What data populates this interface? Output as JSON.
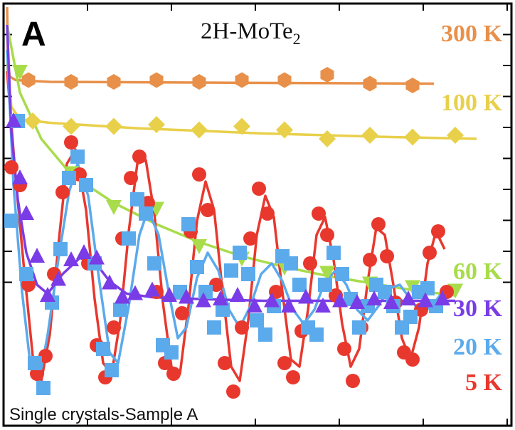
{
  "panel_label": "A",
  "chart_data": {
    "type": "scatter",
    "title": "2H-MoTe2",
    "title_main": "2H-MoTe",
    "title_sub": "2",
    "annotation": "Single crystals-Sample A",
    "xlabel": "",
    "ylabel": "",
    "xlim": [
      0,
      10
    ],
    "ylim": [
      0,
      10
    ],
    "grid": false,
    "legend": "right-side labels",
    "series": [
      {
        "name": "300 K",
        "color": "#E8904A",
        "marker": "hexagon",
        "x": [
          0.5,
          1.5,
          2.5,
          3.5,
          4.5,
          5.5,
          6.5,
          7.5,
          8.5,
          9.5
        ],
        "y": [
          8.95,
          8.9,
          8.9,
          8.95,
          8.9,
          8.95,
          8.95,
          9.1,
          8.85,
          8.8
        ],
        "fit": [
          [
            0.0,
            11.0
          ],
          [
            0.02,
            9.5
          ],
          [
            0.06,
            9.05
          ],
          [
            0.2,
            8.95
          ],
          [
            1.0,
            8.9
          ],
          [
            10.0,
            8.85
          ]
        ]
      },
      {
        "name": "100 K",
        "color": "#E8D04A",
        "marker": "diamond",
        "x": [
          0.6,
          1.5,
          2.5,
          3.5,
          4.5,
          5.5,
          6.5,
          7.5,
          8.5,
          9.5,
          10.5
        ],
        "y": [
          7.8,
          7.65,
          7.65,
          7.7,
          7.55,
          7.65,
          7.55,
          7.3,
          7.4,
          7.35,
          7.4
        ],
        "fit": [
          [
            0.0,
            9.4
          ],
          [
            0.1,
            8.2
          ],
          [
            0.3,
            7.85
          ],
          [
            1.0,
            7.75
          ],
          [
            3.0,
            7.6
          ],
          [
            6.0,
            7.45
          ],
          [
            9.0,
            7.35
          ],
          [
            11.0,
            7.3
          ]
        ]
      },
      {
        "name": "60 K",
        "color": "#A8DC4A",
        "marker": "triangle-down",
        "x": [
          0.3,
          1.5,
          2.5,
          3.5,
          4.5,
          5.5,
          6.5,
          7.5,
          8.5,
          9.5,
          10.5
        ],
        "y": [
          9.2,
          6.35,
          5.4,
          5.35,
          4.3,
          3.95,
          3.7,
          3.55,
          3.25,
          3.15,
          3.05
        ],
        "fit": [
          [
            0.0,
            10.5
          ],
          [
            0.3,
            8.6
          ],
          [
            0.8,
            7.3
          ],
          [
            1.5,
            6.3
          ],
          [
            2.5,
            5.5
          ],
          [
            3.5,
            4.9
          ],
          [
            4.5,
            4.4
          ],
          [
            5.5,
            4.0
          ],
          [
            6.5,
            3.7
          ],
          [
            7.5,
            3.45
          ],
          [
            8.5,
            3.25
          ],
          [
            9.5,
            3.05
          ],
          [
            10.5,
            2.9
          ]
        ]
      },
      {
        "name": "30 K",
        "color": "#7A3CE6",
        "marker": "triangle-up",
        "x": [
          0.15,
          0.3,
          0.45,
          0.7,
          0.95,
          1.2,
          1.5,
          1.8,
          2.1,
          2.4,
          2.7,
          3.0,
          3.4,
          3.8,
          4.2,
          4.6,
          5.0,
          5.4,
          5.8,
          6.2,
          6.6,
          7.0,
          7.4,
          7.8,
          8.2,
          8.6,
          9.0,
          9.4,
          9.8,
          10.2
        ],
        "y": [
          7.8,
          6.2,
          5.2,
          4.0,
          2.9,
          3.35,
          3.9,
          4.1,
          3.95,
          3.25,
          2.85,
          2.95,
          3.05,
          2.9,
          2.85,
          2.75,
          2.8,
          2.9,
          2.6,
          2.75,
          2.6,
          2.85,
          2.6,
          2.75,
          2.7,
          2.8,
          2.7,
          2.8,
          2.75,
          2.8
        ],
        "fit": [
          [
            0.0,
            10.5
          ],
          [
            0.1,
            7.5
          ],
          [
            0.25,
            5.6
          ],
          [
            0.45,
            4.1
          ],
          [
            0.7,
            3.2
          ],
          [
            0.95,
            2.95
          ],
          [
            1.3,
            3.5
          ],
          [
            1.7,
            3.95
          ],
          [
            2.05,
            3.85
          ],
          [
            2.4,
            3.3
          ],
          [
            2.8,
            2.95
          ],
          [
            3.4,
            2.85
          ],
          [
            4.5,
            2.8
          ],
          [
            6.0,
            2.75
          ],
          [
            8.0,
            2.75
          ],
          [
            10.5,
            2.75
          ]
        ]
      },
      {
        "name": "20 K",
        "color": "#5BAAEC",
        "marker": "square",
        "x": [
          0.1,
          0.25,
          0.45,
          0.65,
          0.85,
          1.05,
          1.25,
          1.45,
          1.65,
          1.85,
          2.05,
          2.25,
          2.45,
          2.65,
          2.85,
          3.05,
          3.25,
          3.45,
          3.65,
          3.85,
          4.05,
          4.25,
          4.45,
          4.65,
          4.85,
          5.05,
          5.25,
          5.45,
          5.65,
          5.85,
          6.05,
          6.25,
          6.45,
          6.65,
          6.85,
          7.05,
          7.25,
          7.45,
          7.65,
          7.85,
          8.05,
          8.25,
          8.45,
          8.65,
          8.85,
          9.05,
          9.25,
          9.45,
          9.65,
          9.85,
          10.05
        ],
        "y": [
          5.0,
          7.8,
          3.5,
          1.0,
          0.3,
          2.7,
          4.2,
          6.2,
          6.8,
          6.0,
          3.8,
          1.4,
          0.8,
          2.5,
          4.5,
          5.6,
          5.2,
          3.8,
          1.5,
          1.3,
          3.0,
          4.9,
          3.7,
          3.0,
          2.0,
          2.5,
          3.6,
          4.1,
          3.5,
          2.2,
          1.8,
          2.6,
          4.0,
          3.8,
          3.2,
          2.0,
          1.8,
          3.2,
          4.1,
          3.5,
          2.8,
          2.0,
          2.6,
          3.2,
          3.0,
          2.6,
          2.0,
          2.3,
          3.0,
          3.1,
          2.6
        ],
        "fit": [
          [
            0.0,
            9.8
          ],
          [
            0.15,
            6.0
          ],
          [
            0.35,
            3.0
          ],
          [
            0.55,
            0.9
          ],
          [
            0.75,
            0.5
          ],
          [
            0.95,
            1.8
          ],
          [
            1.2,
            3.9
          ],
          [
            1.45,
            5.8
          ],
          [
            1.65,
            6.6
          ],
          [
            1.9,
            5.7
          ],
          [
            2.15,
            3.4
          ],
          [
            2.4,
            1.3
          ],
          [
            2.6,
            1.0
          ],
          [
            2.85,
            2.6
          ],
          [
            3.1,
            4.6
          ],
          [
            3.3,
            5.3
          ],
          [
            3.55,
            4.6
          ],
          [
            3.8,
            2.9
          ],
          [
            4.0,
            1.7
          ],
          [
            4.2,
            2.0
          ],
          [
            4.45,
            3.4
          ],
          [
            4.7,
            4.1
          ],
          [
            4.95,
            3.6
          ],
          [
            5.2,
            2.5
          ],
          [
            5.45,
            2.0
          ],
          [
            5.7,
            2.6
          ],
          [
            5.95,
            3.5
          ],
          [
            6.2,
            3.8
          ],
          [
            6.45,
            3.3
          ],
          [
            6.7,
            2.5
          ],
          [
            6.95,
            2.1
          ],
          [
            7.2,
            2.5
          ],
          [
            7.45,
            3.3
          ],
          [
            7.7,
            3.6
          ],
          [
            7.95,
            3.2
          ],
          [
            8.2,
            2.5
          ],
          [
            8.45,
            2.2
          ],
          [
            8.7,
            2.6
          ],
          [
            8.95,
            3.1
          ],
          [
            9.2,
            3.2
          ],
          [
            9.45,
            2.8
          ],
          [
            9.7,
            2.4
          ],
          [
            9.95,
            2.6
          ],
          [
            10.2,
            3.0
          ]
        ]
      },
      {
        "name": "5 K",
        "color": "#E8382E",
        "marker": "circle",
        "x": [
          0.1,
          0.3,
          0.5,
          0.7,
          0.9,
          1.1,
          1.3,
          1.5,
          1.7,
          1.9,
          2.1,
          2.3,
          2.5,
          2.7,
          2.9,
          3.1,
          3.3,
          3.5,
          3.7,
          3.9,
          4.1,
          4.3,
          4.5,
          4.7,
          4.9,
          5.1,
          5.3,
          5.5,
          5.7,
          5.9,
          6.1,
          6.3,
          6.5,
          6.7,
          6.9,
          7.1,
          7.3,
          7.5,
          7.7,
          7.9,
          8.1,
          8.3,
          8.5,
          8.7,
          8.9,
          9.1,
          9.3,
          9.5,
          9.7,
          9.9,
          10.1,
          10.3
        ],
        "y": [
          6.5,
          6.0,
          3.2,
          0.7,
          1.2,
          3.5,
          5.8,
          7.2,
          6.3,
          3.8,
          1.5,
          0.6,
          2.0,
          4.5,
          6.2,
          6.8,
          5.5,
          3.0,
          1.0,
          0.7,
          2.4,
          4.7,
          6.3,
          5.3,
          3.2,
          1.0,
          0.2,
          2.0,
          4.5,
          5.9,
          5.2,
          3.0,
          1.0,
          0.6,
          1.9,
          3.8,
          5.2,
          4.6,
          2.9,
          1.4,
          0.5,
          2.0,
          3.9,
          4.9,
          4.0,
          2.7,
          1.3,
          1.1,
          2.5,
          4.1,
          4.7,
          3.0
        ],
        "fit": [
          [
            0.0,
            9.2
          ],
          [
            0.2,
            6.2
          ],
          [
            0.4,
            3.6
          ],
          [
            0.6,
            1.2
          ],
          [
            0.8,
            0.5
          ],
          [
            1.0,
            1.8
          ],
          [
            1.2,
            4.3
          ],
          [
            1.4,
            6.6
          ],
          [
            1.6,
            7.0
          ],
          [
            1.85,
            5.3
          ],
          [
            2.05,
            2.8
          ],
          [
            2.25,
            1.0
          ],
          [
            2.45,
            0.7
          ],
          [
            2.65,
            2.2
          ],
          [
            2.85,
            4.7
          ],
          [
            3.05,
            6.6
          ],
          [
            3.25,
            6.7
          ],
          [
            3.45,
            5.2
          ],
          [
            3.65,
            2.7
          ],
          [
            3.85,
            0.9
          ],
          [
            4.05,
            0.7
          ],
          [
            4.25,
            2.6
          ],
          [
            4.45,
            5.0
          ],
          [
            4.65,
            6.1
          ],
          [
            4.85,
            5.3
          ],
          [
            5.05,
            3.0
          ],
          [
            5.25,
            0.9
          ],
          [
            5.45,
            0.5
          ],
          [
            5.65,
            2.2
          ],
          [
            5.85,
            4.6
          ],
          [
            6.05,
            5.7
          ],
          [
            6.25,
            5.1
          ],
          [
            6.45,
            3.0
          ],
          [
            6.65,
            1.1
          ],
          [
            6.85,
            0.9
          ],
          [
            7.05,
            2.5
          ],
          [
            7.25,
            4.6
          ],
          [
            7.45,
            5.1
          ],
          [
            7.65,
            3.9
          ],
          [
            7.85,
            2.1
          ],
          [
            8.05,
            0.9
          ],
          [
            8.25,
            1.4
          ],
          [
            8.45,
            3.3
          ],
          [
            8.65,
            4.8
          ],
          [
            8.85,
            4.6
          ],
          [
            9.05,
            3.2
          ],
          [
            9.25,
            1.7
          ],
          [
            9.45,
            1.1
          ],
          [
            9.65,
            2.0
          ],
          [
            9.85,
            3.8
          ],
          [
            10.05,
            4.7
          ],
          [
            10.25,
            4.2
          ]
        ]
      }
    ]
  }
}
